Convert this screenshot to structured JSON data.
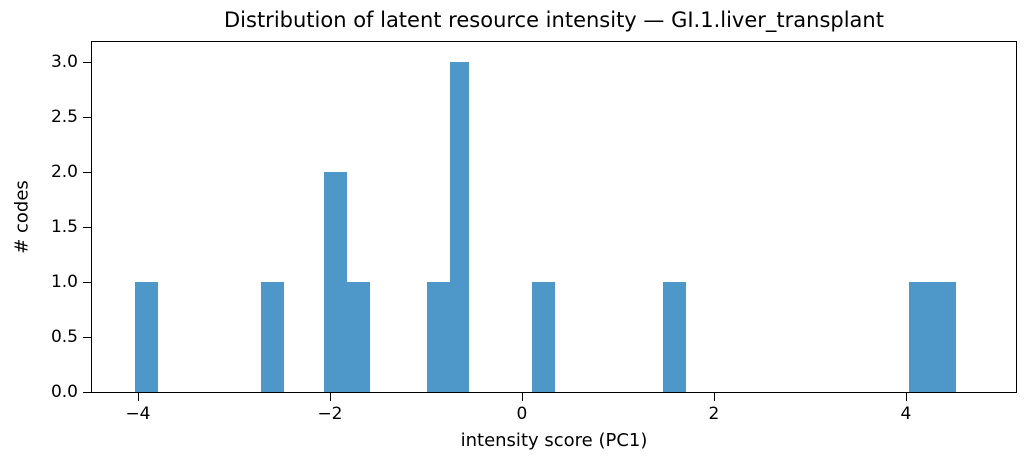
{
  "chart_data": {
    "type": "bar",
    "subtype": "histogram",
    "title": "Distribution of latent resource intensity — GI.1.liver_transplant",
    "xlabel": "intensity score (PC1)",
    "ylabel": "# codes",
    "xlim": [
      -4.479,
      5.146
    ],
    "ylim": [
      0,
      3.185
    ],
    "grid": false,
    "legend": "none",
    "bar_color": "#4d97c9",
    "axis_color": "#000000",
    "x_ticks": {
      "values": [
        -4,
        -2,
        0,
        2,
        4
      ],
      "labels": [
        "−4",
        "−2",
        "0",
        "2",
        "4"
      ]
    },
    "y_ticks": {
      "values": [
        0,
        0.5,
        1,
        1.5,
        2,
        2.5,
        3
      ],
      "labels": [
        "0.0",
        "0.5",
        "1.0",
        "1.5",
        "2.0",
        "2.5",
        "3.0"
      ]
    },
    "bars": [
      {
        "x0": -4.03,
        "x1": -3.79,
        "count": 1
      },
      {
        "x0": -2.72,
        "x1": -2.48,
        "count": 1
      },
      {
        "x0": -2.06,
        "x1": -1.82,
        "count": 2
      },
      {
        "x0": -1.82,
        "x1": -1.58,
        "count": 1
      },
      {
        "x0": -0.99,
        "x1": -0.75,
        "count": 1
      },
      {
        "x0": -0.75,
        "x1": -0.55,
        "count": 3
      },
      {
        "x0": 0.1,
        "x1": 0.34,
        "count": 1
      },
      {
        "x0": 1.47,
        "x1": 1.71,
        "count": 1
      },
      {
        "x0": 4.03,
        "x1": 4.28,
        "count": 1
      },
      {
        "x0": 4.28,
        "x1": 4.52,
        "count": 1
      }
    ]
  }
}
